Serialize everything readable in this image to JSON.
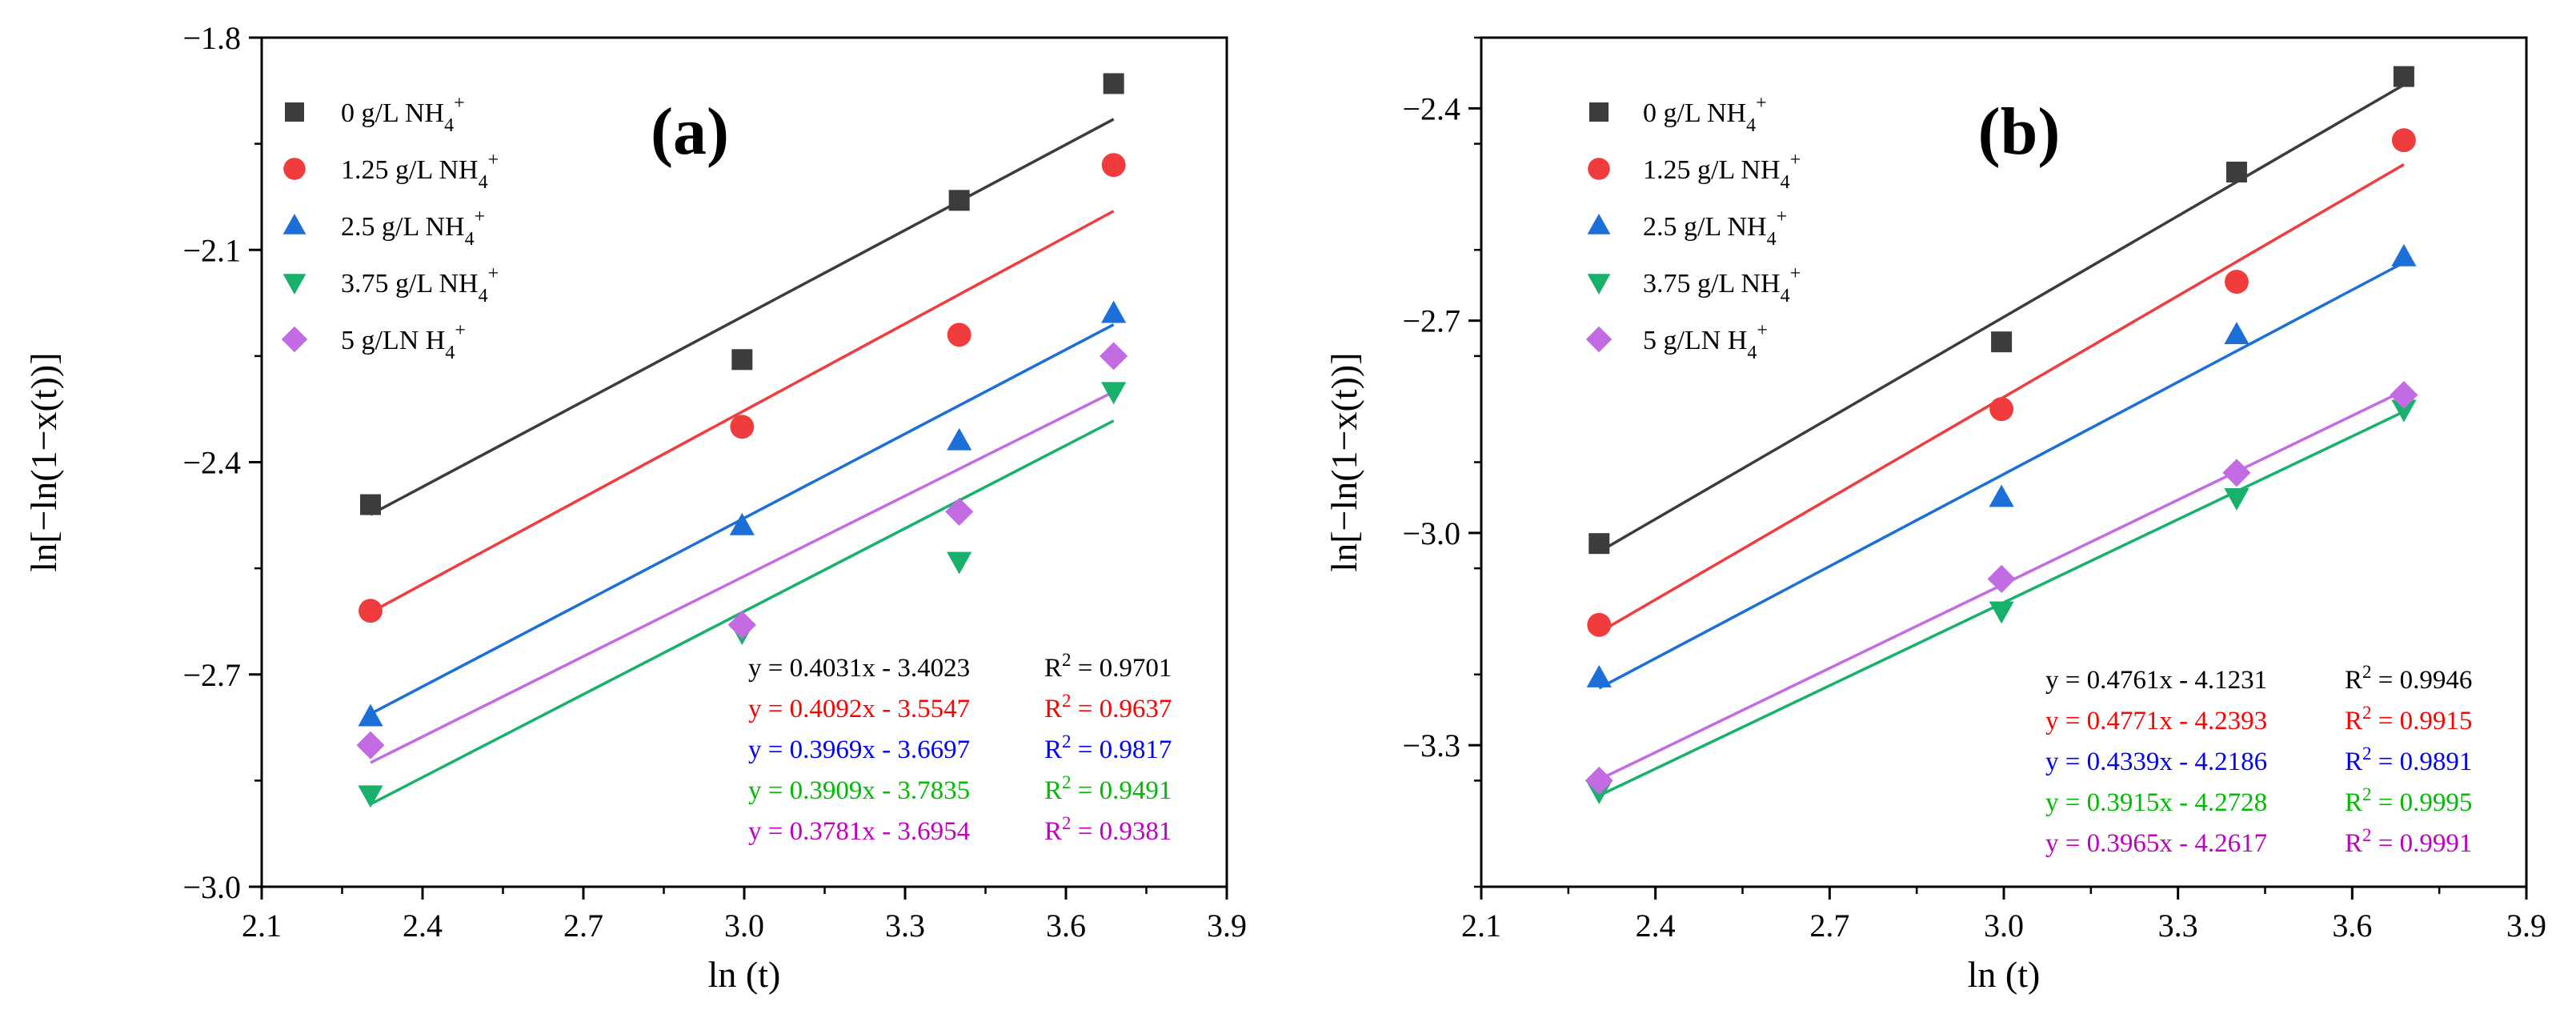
{
  "chart_data": [
    {
      "type": "scatter",
      "panel_label": "(a)",
      "xlabel": "ln (t)",
      "ylabel": "ln[−ln(1−x(t))]",
      "xlim": [
        2.1,
        3.9
      ],
      "ylim": [
        -3.0,
        -1.8
      ],
      "xticks": [
        "2.1",
        "2.4",
        "2.7",
        "3.0",
        "3.3",
        "3.6",
        "3.9"
      ],
      "yticks": [
        "−3.0",
        "−2.7",
        "−2.4",
        "−2.1",
        "−1.8"
      ],
      "x": [
        2.303,
        2.996,
        3.401,
        3.689
      ],
      "legend_position": "top-left",
      "series": [
        {
          "name": "0 g/L NH4+",
          "name_base": "0 g/L NH",
          "color": "#3c3c3c",
          "marker": "square",
          "values": [
            -2.46,
            -2.255,
            -2.03,
            -1.865
          ],
          "fit": {
            "slope": 0.4031,
            "intercept": -3.4023
          },
          "equation": "y = 0.4031x - 3.4023",
          "r2_label": "R",
          "r2_value": " = 0.9701"
        },
        {
          "name": "1.25 g/L NH4+",
          "name_base": "1.25 g/L NH",
          "color": "#f03c3c",
          "marker": "circle",
          "values": [
            -2.61,
            -2.35,
            -2.22,
            -1.98
          ],
          "fit": {
            "slope": 0.4092,
            "intercept": -3.5547
          },
          "equation": "y = 0.4092x - 3.5547",
          "r2_label": "R",
          "r2_value": " = 0.9637"
        },
        {
          "name": "2.5 g/L NH4+",
          "name_base": "2.5 g/L NH",
          "color": "#1c6fd6",
          "marker": "triangle-up",
          "values": [
            -2.76,
            -2.49,
            -2.37,
            -2.19
          ],
          "fit": {
            "slope": 0.3969,
            "intercept": -3.6697
          },
          "equation": "y = 0.3969x - 3.6697",
          "r2_label": "R",
          "r2_value": " = 0.9817"
        },
        {
          "name": "3.75 g/L NH4+",
          "name_base": "3.75 g/L NH",
          "color": "#19b06b",
          "marker": "triangle-down",
          "values": [
            -2.87,
            -2.64,
            -2.54,
            -2.3
          ],
          "fit": {
            "slope": 0.3909,
            "intercept": -3.7835
          },
          "equation": "y = 0.3909x - 3.7835",
          "r2_label": "R",
          "r2_value": " = 0.9491"
        },
        {
          "name": "5 g/LN H4+",
          "name_base": "5 g/LN H",
          "color": "#c26be3",
          "marker": "diamond",
          "values": [
            -2.8,
            -2.63,
            -2.47,
            -2.25
          ],
          "fit": {
            "slope": 0.3781,
            "intercept": -3.6954
          },
          "equation": "y = 0.3781x - 3.6954",
          "r2_label": "R",
          "r2_value": " = 0.9381"
        }
      ],
      "equation_colors": [
        "#000000",
        "#ff0000",
        "#0000ff",
        "#00bb00",
        "#c000c0"
      ]
    },
    {
      "type": "scatter",
      "panel_label": "(b)",
      "xlabel": "ln (t)",
      "ylabel": "ln[−ln(1−x(t))]",
      "xlim": [
        2.1,
        3.9
      ],
      "ylim": [
        -3.5,
        -2.3
      ],
      "xticks": [
        "2.1",
        "2.4",
        "2.7",
        "3.0",
        "3.3",
        "3.6",
        "3.9"
      ],
      "yticks": [
        "−3.3",
        "−3.0",
        "−2.7",
        "−2.4"
      ],
      "x": [
        2.303,
        2.996,
        3.401,
        3.689
      ],
      "legend_position": "top-left",
      "series": [
        {
          "name": "0 g/L NH4+",
          "name_base": "0 g/L NH",
          "color": "#3c3c3c",
          "marker": "square",
          "values": [
            -3.015,
            -2.73,
            -2.49,
            -2.355
          ],
          "fit": {
            "slope": 0.4761,
            "intercept": -4.1231
          },
          "equation": "y = 0.4761x - 4.1231",
          "r2_label": "R",
          "r2_value": " = 0.9946"
        },
        {
          "name": "1.25 g/L NH4+",
          "name_base": "1.25 g/L NH",
          "color": "#f03c3c",
          "marker": "circle",
          "values": [
            -3.13,
            -2.825,
            -2.645,
            -2.445
          ],
          "fit": {
            "slope": 0.4771,
            "intercept": -4.2393
          },
          "equation": "y = 0.4771x - 4.2393",
          "r2_label": "R",
          "r2_value": " = 0.9915"
        },
        {
          "name": "2.5 g/L NH4+",
          "name_base": "2.5 g/L NH",
          "color": "#1c6fd6",
          "marker": "triangle-up",
          "values": [
            -3.205,
            -2.95,
            -2.72,
            -2.61
          ],
          "fit": {
            "slope": 0.4339,
            "intercept": -4.2186
          },
          "equation": "y = 0.4339x - 4.2186",
          "r2_label": "R",
          "r2_value": " = 0.9891"
        },
        {
          "name": "3.75 g/L NH4+",
          "name_base": "3.75 g/L NH",
          "color": "#19b06b",
          "marker": "triangle-down",
          "values": [
            -3.365,
            -3.11,
            -2.95,
            -2.825
          ],
          "fit": {
            "slope": 0.3915,
            "intercept": -4.2728
          },
          "equation": "y = 0.3915x - 4.2728",
          "r2_label": "R",
          "r2_value": " = 0.9995"
        },
        {
          "name": "5 g/LN H4+",
          "name_base": "5 g/LN H",
          "color": "#c26be3",
          "marker": "diamond",
          "values": [
            -3.35,
            -3.065,
            -2.915,
            -2.805
          ],
          "fit": {
            "slope": 0.3965,
            "intercept": -4.2617
          },
          "equation": "y = 0.3965x - 4.2617",
          "r2_label": "R",
          "r2_value": " = 0.9991"
        }
      ],
      "equation_colors": [
        "#000000",
        "#ff0000",
        "#0000ff",
        "#00bb00",
        "#c000c0"
      ]
    }
  ]
}
